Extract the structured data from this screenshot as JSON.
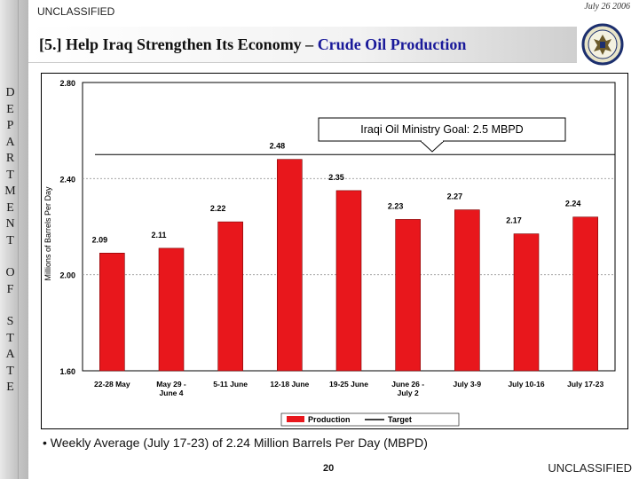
{
  "header": {
    "classification": "UNCLASSIFIED",
    "date": "July 26 2006",
    "slide_number": "[5.]",
    "title_main": "Help Iraq Strengthen Its Economy –",
    "title_accent": "Crude Oil Production"
  },
  "sidebar": {
    "letters": [
      "D",
      "E",
      "P",
      "A",
      "R",
      "T",
      "M",
      "E",
      "N",
      "T",
      "",
      "O",
      "F",
      "",
      "S",
      "T",
      "A",
      "T",
      "E"
    ]
  },
  "chart_data": {
    "type": "bar",
    "title": "",
    "ylabel": "Millions of Barrels Per Day",
    "xlabel": "",
    "ylim": [
      1.6,
      2.8
    ],
    "yticks": [
      "1.60",
      "2.00",
      "2.40",
      "2.80"
    ],
    "ytick_values": [
      1.6,
      2.0,
      2.4,
      2.8
    ],
    "categories": [
      [
        "22-28 May"
      ],
      [
        "May 29 -",
        "June 4"
      ],
      [
        "5-11 June"
      ],
      [
        "12-18 June"
      ],
      [
        "19-25 June"
      ],
      [
        "June 26 -",
        "July 2"
      ],
      [
        "July 3-9"
      ],
      [
        "July 10-16"
      ],
      [
        "July 17-23"
      ]
    ],
    "series": [
      {
        "name": "Production",
        "values": [
          2.09,
          2.11,
          2.22,
          2.48,
          2.35,
          2.23,
          2.27,
          2.17,
          2.24
        ],
        "labels": [
          "2.09",
          "2.11",
          "2.22",
          "2.48",
          "2.35",
          "2.23",
          "2.27",
          "2.17",
          "2.24"
        ],
        "color": "#e8171c"
      },
      {
        "name": "Target",
        "value": 2.5,
        "color": "#000000"
      }
    ],
    "annotation": "Iraqi Oil Ministry Goal:  2.5 MBPD",
    "legend": [
      "Production",
      "Target"
    ],
    "legend_position": "bottom-center",
    "grid": true
  },
  "footer": {
    "bullet": "• Weekly Average (July 17-23) of 2.24 Million Barrels Per Day (MBPD)",
    "page_number": "20",
    "classification": "UNCLASSIFIED"
  }
}
